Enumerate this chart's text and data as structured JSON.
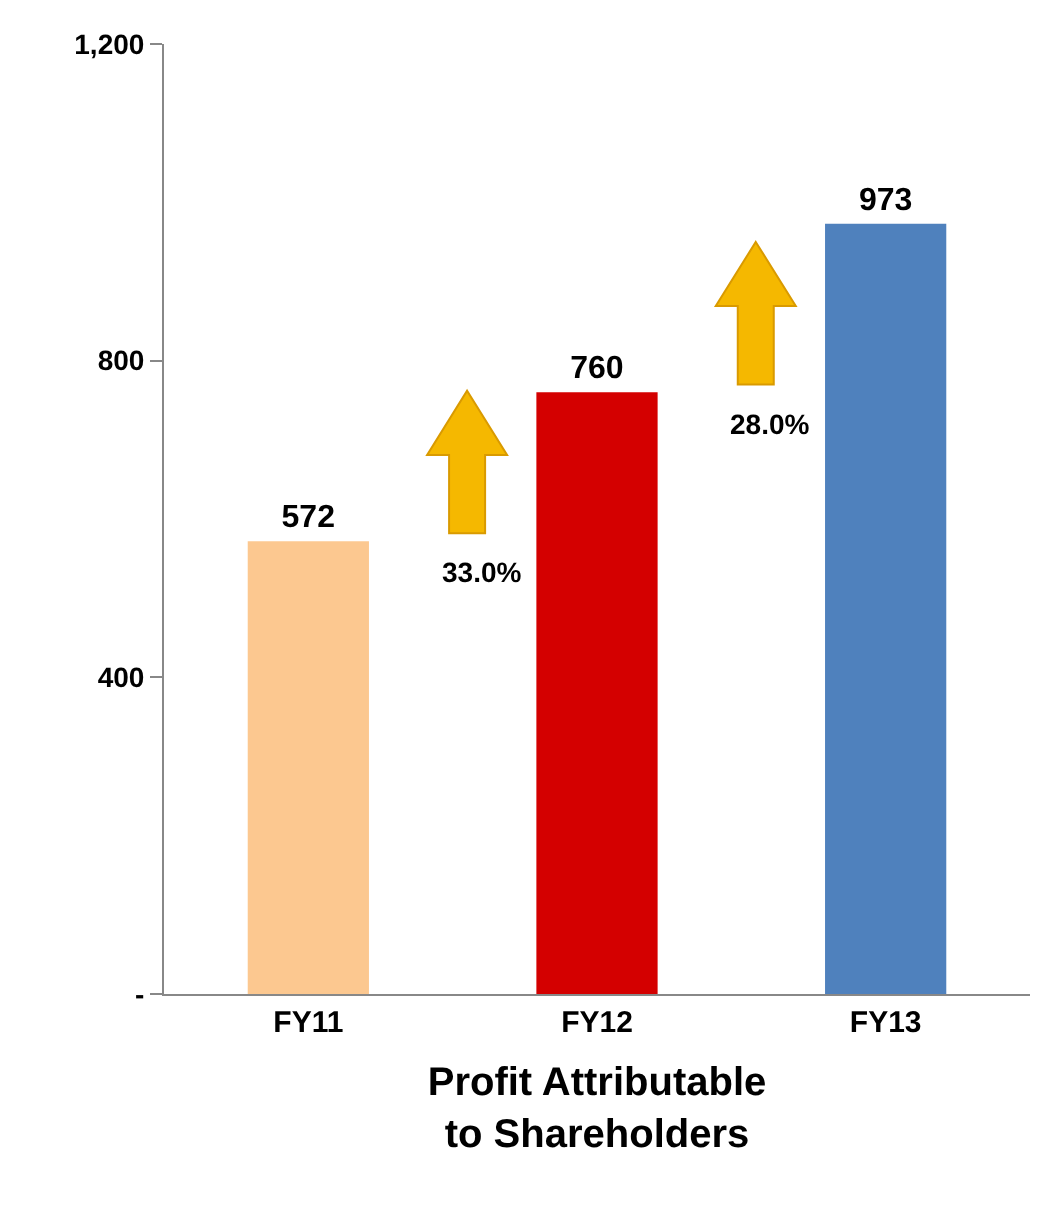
{
  "chart_data": {
    "type": "bar",
    "xlabel": "Profit Attributable\nto Shareholders",
    "categories": [
      "FY11",
      "FY12",
      "FY13"
    ],
    "values": [
      572,
      760,
      973
    ],
    "colors": [
      "#fcc890",
      "#d40000",
      "#4f81bd"
    ],
    "data_labels": true,
    "ylim": [
      0,
      1200
    ],
    "yticks": [
      {
        "value": 0,
        "label": "-"
      },
      400,
      800,
      {
        "value": 1200,
        "label": "1,200"
      }
    ],
    "grid": false,
    "annotations": [
      "33.0%",
      "28.0%"
    ]
  }
}
